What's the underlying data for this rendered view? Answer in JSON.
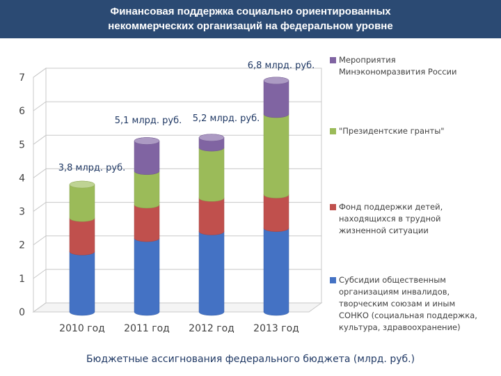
{
  "header": {
    "title_line1": "Финансовая поддержка социально ориентированных",
    "title_line2": "некоммерческих организаций на федеральном уровне"
  },
  "footer": {
    "caption": "Бюджетные ассигнования федерального бюджета (млрд. руб.)"
  },
  "chart_data": {
    "type": "bar",
    "stacked": true,
    "categories": [
      "2010 год",
      "2011 год",
      "2012 год",
      "2013 год"
    ],
    "ylim": [
      0,
      7
    ],
    "yticks": [
      0,
      1,
      2,
      3,
      4,
      5,
      6,
      7
    ],
    "grid": true,
    "legend_position": "right",
    "series": [
      {
        "name": "Субсидии общественным организациям инвалидов, творческим союзам и иным СОНКО (социальная поддержка, культура, здравоохранение)",
        "legend_lines": [
          "Субсидии общественным",
          "организациям инвалидов,",
          "творческим союзам и иным",
          "СОНКО (социальная поддержка,",
          "культура, здравоохранение)"
        ],
        "color": "#4472c4",
        "values": [
          1.8,
          2.2,
          2.4,
          2.5
        ]
      },
      {
        "name": "Фонд поддержки детей, находящихся в трудной жизненной ситуации",
        "legend_lines": [
          "Фонд поддержки детей,",
          "находящихся в трудной",
          "жизненной ситуации"
        ],
        "color": "#c0504d",
        "values": [
          1.0,
          1.0,
          1.0,
          1.0
        ]
      },
      {
        "name": "\"Президентские гранты\"",
        "legend_lines": [
          "\"Президентские гранты\""
        ],
        "color": "#9bbb59",
        "values": [
          1.0,
          1.0,
          1.5,
          2.4
        ]
      },
      {
        "name": "Мероприятия Минэкономразвития России",
        "legend_lines": [
          "Мероприятия",
          "Минэкономразвития России"
        ],
        "color": "#8064a2",
        "values": [
          0,
          0.9,
          0.3,
          1.0
        ]
      }
    ],
    "data_labels": [
      "3,8 млрд. руб.",
      "5,1 млрд. руб.",
      "5,2 млрд. руб.",
      "6,8 млрд. руб."
    ]
  }
}
